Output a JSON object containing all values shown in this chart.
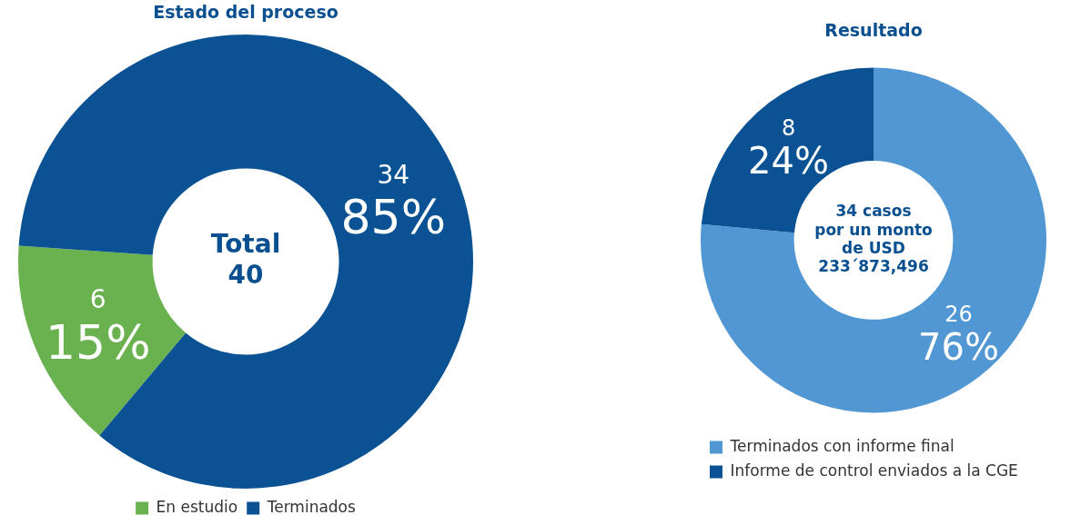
{
  "chart_data": [
    {
      "type": "donut",
      "title": "Estado del proceso",
      "categories": [
        "En estudio",
        "Terminados"
      ],
      "values": [
        6,
        34
      ],
      "colors": [
        "#6ab150",
        "#0a5294"
      ],
      "value_labels": [
        "6\n15%",
        "34\n85%"
      ],
      "annotations": [
        "Total\n40"
      ],
      "legend": "bottom"
    },
    {
      "type": "donut",
      "title": "Resultado",
      "categories": [
        "Terminados con informe final",
        "Informe de control enviados a la CGE"
      ],
      "values": [
        26,
        8
      ],
      "colors": [
        "#5197d4",
        "#0a5294"
      ],
      "value_labels": [
        "26\n76%",
        "8\n24%"
      ],
      "annotations": [
        "34 casos\npor un monto\nde USD\n233´873,496"
      ],
      "legend": "bottom"
    }
  ]
}
